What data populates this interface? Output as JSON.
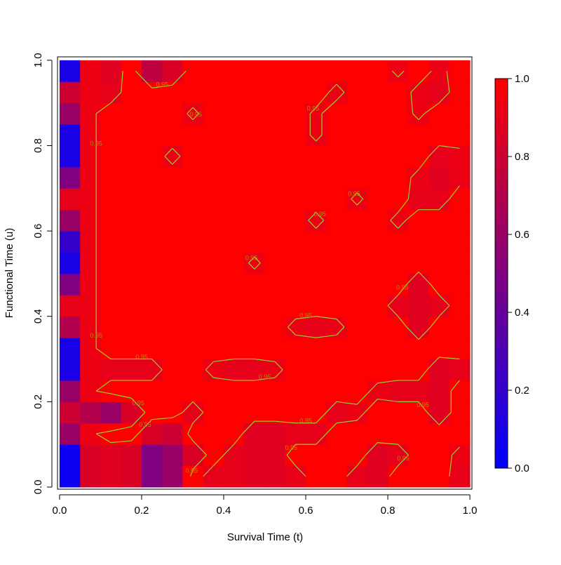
{
  "chart_data": {
    "type": "heatmap",
    "x_label": "Survival Time (t)",
    "y_label": "Functional Time (u)",
    "xlim": [
      -0.005,
      1.005
    ],
    "ylim": [
      -0.005,
      1.008
    ],
    "xticks": [
      {
        "value": 0,
        "label": "0.0"
      },
      0.2,
      0.4,
      0.6,
      0.8,
      {
        "value": 1,
        "label": "1.0"
      }
    ],
    "yticks": [
      {
        "value": 0,
        "label": "0.0"
      },
      0.2,
      0.4,
      0.6,
      0.8,
      {
        "value": 1,
        "label": "1.0"
      }
    ],
    "x": [
      0.025,
      0.075,
      0.125,
      0.175,
      0.225,
      0.275,
      0.325,
      0.375,
      0.425,
      0.475,
      0.525,
      0.575,
      0.625,
      0.675,
      0.725,
      0.775,
      0.825,
      0.875,
      0.925,
      0.975
    ],
    "y": [
      0.025,
      0.075,
      0.125,
      0.175,
      0.225,
      0.275,
      0.325,
      0.375,
      0.425,
      0.475,
      0.525,
      0.575,
      0.625,
      0.675,
      0.725,
      0.775,
      0.825,
      0.875,
      0.925,
      0.975
    ],
    "z": [
      [
        0.05,
        0.85,
        0.88,
        0.85,
        0.5,
        0.6,
        1,
        0.9,
        0.9,
        0.88,
        0.88,
        0.9,
        1,
        1,
        0.9,
        0.88,
        1,
        1,
        1,
        0.9
      ],
      [
        0.05,
        0.85,
        0.88,
        0.85,
        0.5,
        0.6,
        0.85,
        1,
        0.9,
        0.88,
        0.88,
        1,
        1,
        1,
        1,
        0.88,
        0.9,
        1,
        1,
        0.92
      ],
      [
        0.6,
        0.93,
        1,
        1,
        0.85,
        0.8,
        1,
        1,
        1,
        0.88,
        0.88,
        0.9,
        0.9,
        1,
        1,
        1,
        1,
        1,
        1,
        1
      ],
      [
        0.8,
        0.7,
        0.6,
        0.85,
        1,
        1,
        0.9,
        1,
        1,
        1,
        1,
        1,
        1,
        0.9,
        0.92,
        1,
        1,
        1,
        0.88,
        1
      ],
      [
        0.6,
        0.93,
        1,
        1,
        1,
        1,
        1,
        1,
        1,
        1,
        1,
        1,
        1,
        1,
        1,
        0.92,
        0.9,
        0.9,
        0.88,
        1
      ],
      [
        0.1,
        0.93,
        0.9,
        0.9,
        0.9,
        1,
        1,
        0.92,
        0.9,
        0.9,
        0.92,
        1,
        1,
        1,
        1,
        1,
        1,
        1,
        0.88,
        0.9
      ],
      [
        0.1,
        0.93,
        1,
        1,
        1,
        1,
        1,
        1,
        1,
        1,
        1,
        1,
        1,
        1,
        1,
        1,
        1,
        1,
        1,
        1
      ],
      [
        0.7,
        0.93,
        1,
        1,
        1,
        1,
        1,
        1,
        1,
        1,
        1,
        0.92,
        0.9,
        0.92,
        1,
        1,
        1,
        0.88,
        1,
        1
      ],
      [
        0.9,
        0.93,
        1,
        1,
        1,
        1,
        1,
        1,
        1,
        1,
        1,
        1,
        1,
        1,
        1,
        1,
        0.9,
        0.88,
        0.9,
        1
      ],
      [
        0.5,
        0.93,
        1,
        1,
        1,
        1,
        1,
        1,
        1,
        1,
        1,
        1,
        1,
        1,
        1,
        1,
        1,
        0.88,
        1,
        1
      ],
      [
        0.1,
        0.93,
        1,
        1,
        1,
        1,
        1,
        1,
        1,
        0.93,
        1,
        1,
        1,
        1,
        1,
        1,
        1,
        1,
        1,
        1
      ],
      [
        0.2,
        0.93,
        1,
        1,
        1,
        1,
        1,
        1,
        1,
        1,
        1,
        1,
        1,
        1,
        1,
        1,
        1,
        1,
        1,
        1
      ],
      [
        0.6,
        0.93,
        1,
        1,
        1,
        1,
        1,
        1,
        1,
        1,
        1,
        1,
        0.92,
        1,
        1,
        1,
        0.92,
        1,
        1,
        1
      ],
      [
        0.9,
        0.93,
        1,
        1,
        1,
        1,
        1,
        1,
        1,
        1,
        1,
        1,
        1,
        1,
        0.93,
        1,
        1,
        0.9,
        0.9,
        1
      ],
      [
        0.5,
        0.93,
        1,
        1,
        1,
        1,
        1,
        1,
        1,
        1,
        1,
        1,
        1,
        1,
        1,
        1,
        1,
        0.92,
        0.88,
        0.92
      ],
      [
        0.1,
        0.93,
        1,
        1,
        1,
        0.92,
        1,
        1,
        1,
        1,
        1,
        1,
        1,
        1,
        1,
        1,
        1,
        1,
        0.9,
        0.92
      ],
      [
        0.1,
        0.93,
        1,
        1,
        1,
        1,
        1,
        1,
        1,
        1,
        1,
        1,
        0.93,
        1,
        1,
        1,
        1,
        1,
        1,
        1
      ],
      [
        0.6,
        0.93,
        1,
        1,
        1,
        1,
        0.93,
        1,
        1,
        1,
        1,
        1,
        0.93,
        1,
        1,
        1,
        1,
        0.93,
        1,
        1
      ],
      [
        0.8,
        0.93,
        0.9,
        1,
        1,
        1,
        1,
        1,
        1,
        1,
        1,
        1,
        1,
        0.92,
        1,
        1,
        1,
        0.92,
        0.9,
        1
      ],
      [
        0.1,
        0.93,
        0.88,
        1,
        0.75,
        0.85,
        1,
        1,
        1,
        1,
        1,
        1,
        1,
        1,
        1,
        1,
        0.93,
        1,
        0.92,
        1
      ]
    ],
    "colors": [
      "#0000ff",
      "#ff0000"
    ],
    "zlim": [
      0,
      1
    ],
    "zticks": [
      {
        "value": 0,
        "label": "0.0"
      },
      0.2,
      0.4,
      0.6,
      0.8,
      {
        "value": 1,
        "label": "1.0"
      }
    ],
    "contours": [
      {
        "value": 0.95,
        "label": "0.95"
      }
    ],
    "contour_color": "#9acd32"
  }
}
